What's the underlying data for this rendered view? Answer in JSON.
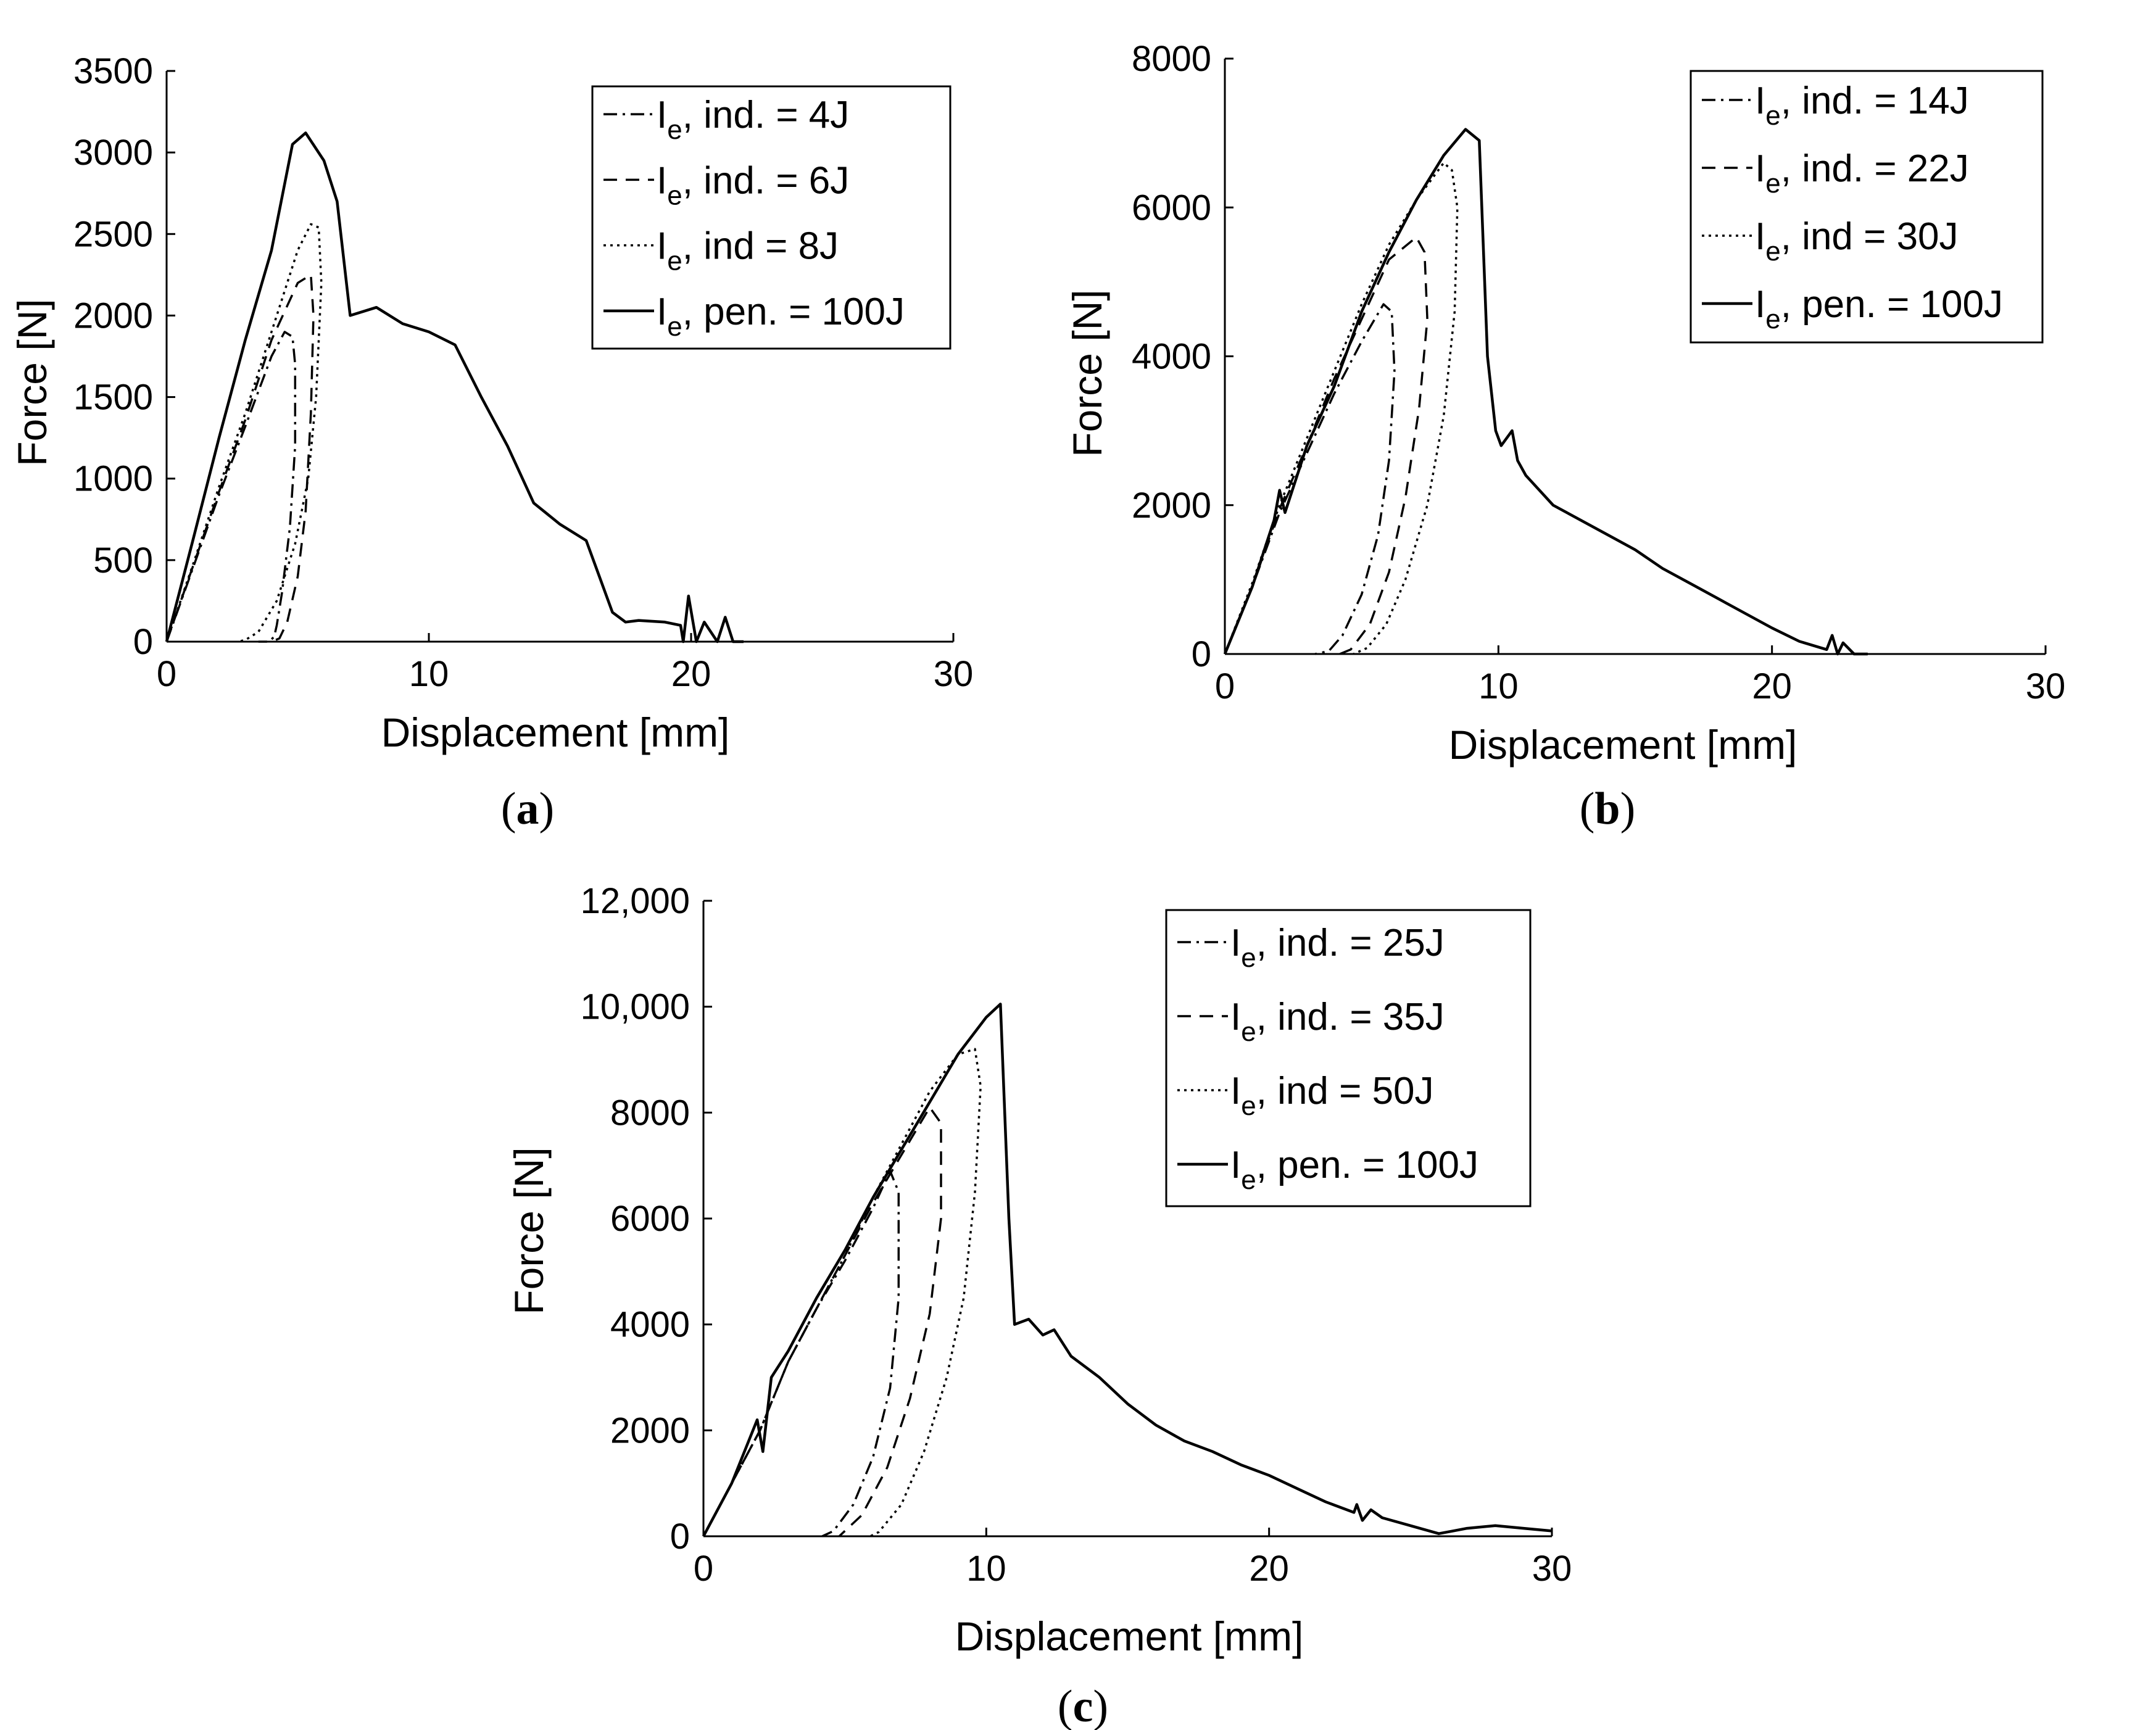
{
  "chart_data": [
    {
      "type": "line",
      "caption": "a",
      "xlabel": "Displacement  [mm]",
      "ylabel": "Force [N]",
      "xlim": [
        0,
        30
      ],
      "ylim": [
        0,
        3500
      ],
      "xticks": [
        "0",
        "10",
        "20",
        "30"
      ],
      "yticks": [
        "0",
        "500",
        "1000",
        "1500",
        "2000",
        "2500",
        "3000",
        "3500"
      ],
      "legend_position": "top-right",
      "series": [
        {
          "name": "I",
          "sub": "e",
          "label_rest": ", ind. = 4J",
          "style": "dashdot",
          "x": [
            0,
            1,
            2,
            3,
            4,
            4.5,
            4.8,
            4.9,
            4.9,
            4.7,
            4.4,
            4.2,
            4.1,
            3.9,
            3.5
          ],
          "y": [
            0,
            450,
            900,
            1320,
            1750,
            1900,
            1870,
            1700,
            1200,
            700,
            300,
            100,
            30,
            0,
            0
          ]
        },
        {
          "name": "I",
          "sub": "e",
          "label_rest": ", ind. = 6J",
          "style": "dashed",
          "x": [
            0,
            1,
            2,
            3,
            4,
            5,
            5.5,
            5.6,
            5.5,
            5.3,
            5.0,
            4.6,
            4.3,
            4.0
          ],
          "y": [
            0,
            460,
            920,
            1360,
            1850,
            2200,
            2250,
            2000,
            1400,
            800,
            400,
            120,
            20,
            0
          ]
        },
        {
          "name": "I",
          "sub": "e",
          "label_rest": ", ind = 8J",
          "style": "dotted",
          "x": [
            0,
            1,
            2,
            3,
            4,
            5,
            5.5,
            5.8,
            5.9,
            5.7,
            5.4,
            4.9,
            4.2,
            3.5,
            3.0,
            2.7
          ],
          "y": [
            0,
            470,
            950,
            1400,
            1900,
            2400,
            2560,
            2540,
            2200,
            1500,
            1000,
            600,
            250,
            60,
            10,
            0
          ]
        },
        {
          "name": "I",
          "sub": "e",
          "label_rest": ", pen. = 100J",
          "style": "solid",
          "x": [
            0,
            1,
            2,
            3,
            4,
            4.8,
            5.3,
            6.0,
            6.5,
            7.0,
            8,
            9,
            10,
            11,
            12,
            13,
            14,
            15,
            16,
            16.5,
            17,
            17.5,
            18,
            19,
            19.6,
            19.7,
            19.9,
            20.2,
            20.5,
            21,
            21.3,
            21.6,
            22
          ],
          "y": [
            0,
            620,
            1250,
            1850,
            2400,
            3050,
            3120,
            2950,
            2700,
            2000,
            2050,
            1950,
            1900,
            1820,
            1500,
            1200,
            850,
            720,
            620,
            400,
            180,
            120,
            130,
            120,
            100,
            0,
            280,
            0,
            120,
            0,
            150,
            0,
            0
          ]
        }
      ]
    },
    {
      "type": "line",
      "caption": "b",
      "xlabel": "Displacement  [mm]",
      "ylabel": "Force [N]",
      "xlim": [
        0,
        30
      ],
      "ylim": [
        0,
        8000
      ],
      "xticks": [
        "0",
        "10",
        "20",
        "30"
      ],
      "yticks": [
        "0",
        "2000",
        "4000",
        "6000",
        "8000"
      ],
      "legend_position": "top-right",
      "series": [
        {
          "name": "I",
          "sub": "e",
          "label_rest": ", ind. = 14J",
          "style": "dashdot",
          "x": [
            0,
            1,
            2,
            3,
            4,
            5,
            5.8,
            6.1,
            6.2,
            6.0,
            5.6,
            5.0,
            4.3,
            3.8,
            3.3
          ],
          "y": [
            0,
            900,
            1900,
            2700,
            3500,
            4200,
            4700,
            4600,
            3800,
            2600,
            1600,
            800,
            250,
            40,
            0
          ]
        },
        {
          "name": "I",
          "sub": "e",
          "label_rest": ", ind. = 22J",
          "style": "dashed",
          "x": [
            0,
            1,
            2,
            3,
            4,
            5,
            6,
            7,
            7.3,
            7.4,
            7.1,
            6.6,
            6.0,
            5.3,
            4.6,
            4.2
          ],
          "y": [
            0,
            900,
            1950,
            2800,
            3700,
            4500,
            5300,
            5600,
            5400,
            4500,
            3300,
            2100,
            1100,
            400,
            60,
            0
          ]
        },
        {
          "name": "I",
          "sub": "e",
          "label_rest": ", ind = 30J",
          "style": "dotted",
          "x": [
            0,
            1,
            2,
            3,
            4,
            5,
            6,
            7,
            8,
            8.3,
            8.5,
            8.4,
            8.0,
            7.4,
            6.6,
            5.9,
            5.2,
            4.7
          ],
          "y": [
            0,
            950,
            2000,
            2900,
            3800,
            4700,
            5500,
            6100,
            6600,
            6500,
            6000,
            4600,
            3200,
            2000,
            1000,
            400,
            80,
            0
          ]
        },
        {
          "name": "I",
          "sub": "e",
          "label_rest": ", pen. = 100J",
          "style": "solid",
          "x": [
            0,
            1,
            1.8,
            2.0,
            2.2,
            3,
            4,
            5,
            6,
            7,
            8,
            8.8,
            9.3,
            9.6,
            9.9,
            10.1,
            10.5,
            10.7,
            11,
            12,
            13,
            14,
            15,
            16,
            17,
            18,
            19,
            20,
            21,
            22,
            22.2,
            22.4,
            22.6,
            23,
            23.5
          ],
          "y": [
            0,
            900,
            1800,
            2200,
            1900,
            2800,
            3600,
            4600,
            5400,
            6100,
            6700,
            7050,
            6900,
            4000,
            3000,
            2800,
            3000,
            2600,
            2400,
            2000,
            1800,
            1600,
            1400,
            1150,
            950,
            750,
            550,
            350,
            170,
            60,
            250,
            0,
            150,
            0,
            0
          ]
        }
      ]
    },
    {
      "type": "line",
      "caption": "c",
      "xlabel": "Displacement  [mm]",
      "ylabel": "Force [N]",
      "xlim": [
        0,
        30
      ],
      "ylim": [
        0,
        12000
      ],
      "xticks": [
        "0",
        "10",
        "20",
        "30"
      ],
      "yticks": [
        "0",
        "2000",
        "4000",
        "6000",
        "8000",
        "10,000",
        "12,000"
      ],
      "legend_position": "top-right",
      "series": [
        {
          "name": "I",
          "sub": "e",
          "label_rest": ", ind. = 25J",
          "style": "dashdot",
          "x": [
            0,
            1,
            2,
            3,
            4,
            5,
            6,
            6.6,
            6.9,
            6.9,
            6.6,
            6.0,
            5.3,
            4.6,
            4.2
          ],
          "y": [
            0,
            1000,
            2000,
            3300,
            4300,
            5200,
            6200,
            6900,
            6500,
            4500,
            2800,
            1500,
            600,
            100,
            0
          ]
        },
        {
          "name": "I",
          "sub": "e",
          "label_rest": ", ind. = 35J",
          "style": "dashed",
          "x": [
            0,
            1,
            2,
            3,
            4,
            5,
            6,
            7,
            8,
            8.4,
            8.4,
            8.0,
            7.3,
            6.5,
            5.6,
            4.8
          ],
          "y": [
            0,
            1000,
            2000,
            3300,
            4300,
            5300,
            6300,
            7200,
            8100,
            7800,
            6000,
            4200,
            2600,
            1300,
            400,
            0
          ]
        },
        {
          "name": "I",
          "sub": "e",
          "label_rest": ", ind = 50J",
          "style": "dotted",
          "x": [
            0,
            1,
            2,
            3,
            4,
            5,
            6,
            7,
            8,
            9,
            9.6,
            9.8,
            9.6,
            9.2,
            8.6,
            7.8,
            7.0,
            6.2,
            5.9
          ],
          "y": [
            0,
            1000,
            2000,
            3300,
            4300,
            5300,
            6400,
            7400,
            8400,
            9100,
            9200,
            8500,
            6500,
            4500,
            3000,
            1600,
            600,
            80,
            0
          ]
        },
        {
          "name": "I",
          "sub": "e",
          "label_rest": ", pen. = 100J",
          "style": "solid",
          "x": [
            0,
            1,
            1.9,
            2.1,
            2.4,
            3,
            4,
            5,
            6,
            7,
            8,
            9,
            10,
            10.5,
            10.8,
            11.0,
            11.5,
            12,
            12.4,
            13,
            14,
            15,
            16,
            17,
            18,
            19,
            20,
            21,
            22,
            23,
            23.1,
            23.3,
            23.6,
            24,
            25,
            26,
            26.5,
            27,
            28,
            29,
            30
          ],
          "y": [
            0,
            1000,
            2200,
            1600,
            3000,
            3500,
            4500,
            5400,
            6400,
            7300,
            8200,
            9100,
            9800,
            10050,
            6000,
            4000,
            4100,
            3800,
            3900,
            3400,
            3000,
            2500,
            2100,
            1800,
            1600,
            1350,
            1150,
            900,
            650,
            450,
            600,
            300,
            500,
            350,
            200,
            50,
            100,
            150,
            200,
            150,
            100
          ]
        }
      ]
    }
  ]
}
